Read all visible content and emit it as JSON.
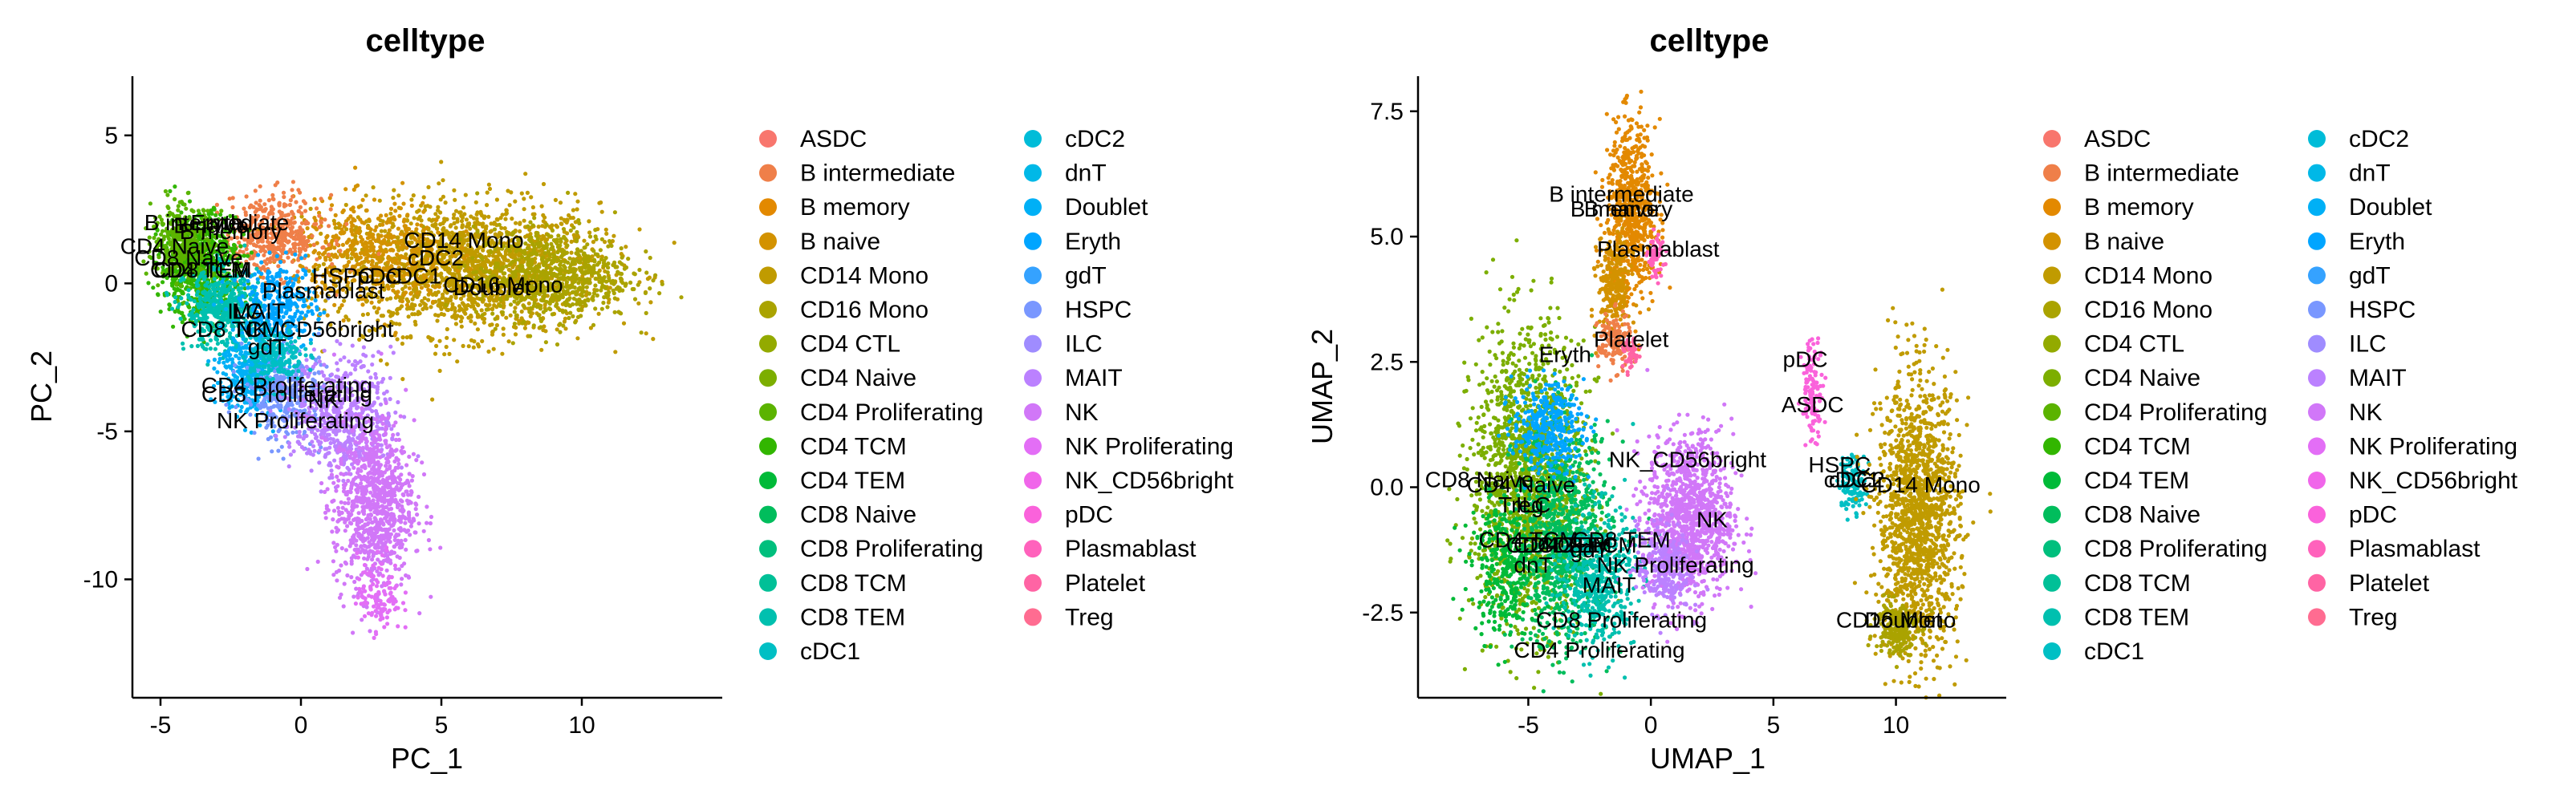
{
  "chart_data": [
    {
      "type": "scatter",
      "title": "celltype",
      "xlabel": "PC_1",
      "ylabel": "PC_2",
      "xlim": [
        -6,
        15
      ],
      "ylim": [
        -14,
        7
      ],
      "xticks": [
        -5,
        0,
        5,
        10
      ],
      "yticks": [
        5,
        0,
        -5,
        -10
      ],
      "grid": false,
      "legend_position": "right",
      "clusters": [
        {
          "name": "B intermediate",
          "x": -3.0,
          "y": 1.8,
          "label": "B intermediate"
        },
        {
          "name": "B memory",
          "x": -2.5,
          "y": 1.5,
          "label": "B memory"
        },
        {
          "name": "B naive",
          "x": -3.2,
          "y": 1.7,
          "label": "B naive"
        },
        {
          "name": "Eryth",
          "x": -3.0,
          "y": 1.8,
          "label": "Eryth"
        },
        {
          "name": "CD4 Naive",
          "x": -4.5,
          "y": 1.0,
          "label": "CD4 Naive"
        },
        {
          "name": "CD8 Naive",
          "x": -4.0,
          "y": 0.6,
          "label": "CD8 Naive"
        },
        {
          "name": "CD4 TCM",
          "x": -3.6,
          "y": 0.2,
          "label": "CD4 TCM"
        },
        {
          "name": "CD8 TEM",
          "x": -3.5,
          "y": 0.2,
          "label": "CD8 TEM"
        },
        {
          "name": "HSPC",
          "x": 1.5,
          "y": 0.0,
          "label": "HSPC"
        },
        {
          "name": "pDC",
          "x": 2.8,
          "y": 0.0,
          "label": "pDC"
        },
        {
          "name": "cDC1",
          "x": 4.0,
          "y": 0.0,
          "label": "cDC1"
        },
        {
          "name": "CD14 Mono",
          "x": 5.8,
          "y": 1.2,
          "label": "CD14 Mono"
        },
        {
          "name": "cDC2",
          "x": 4.8,
          "y": 0.6,
          "label": "cDC2"
        },
        {
          "name": "CD16 Mono",
          "x": 7.2,
          "y": -0.3,
          "label": "CD16 Mono"
        },
        {
          "name": "Doublet",
          "x": 6.8,
          "y": -0.4,
          "label": "Doublet"
        },
        {
          "name": "Plasmablast",
          "x": 0.8,
          "y": -0.5,
          "label": "Plasmablast"
        },
        {
          "name": "ILC",
          "x": -2.0,
          "y": -1.2,
          "label": "ILC"
        },
        {
          "name": "MAIT",
          "x": -1.5,
          "y": -1.2,
          "label": "MAIT"
        },
        {
          "name": "CD8 TCM",
          "x": -2.5,
          "y": -1.8,
          "label": "CD8 TCM"
        },
        {
          "name": "NK_CD56bright",
          "x": 0.5,
          "y": -1.8,
          "label": "NK_CD56bright"
        },
        {
          "name": "gdT",
          "x": -1.2,
          "y": -2.4,
          "label": "gdT"
        },
        {
          "name": "CD4 Proliferating",
          "x": -0.5,
          "y": -3.7,
          "label": "CD4 Proliferating"
        },
        {
          "name": "CD8 Proliferating",
          "x": -0.5,
          "y": -4.0,
          "label": "CD8 Proliferating"
        },
        {
          "name": "NK",
          "x": 0.8,
          "y": -4.2,
          "label": "NK"
        },
        {
          "name": "NK Proliferating",
          "x": -0.2,
          "y": -4.9,
          "label": "NK Proliferating"
        }
      ],
      "label_ids": [
        "B intermediate",
        "B memory",
        "B naive",
        "Eryth",
        "CD4 Naive",
        "CD8 Naive",
        "CD4 TCM",
        "CD8 TEM",
        "HSPC",
        "pDC",
        "cDC1",
        "CD14 Mono",
        "cDC2",
        "CD16 Mono",
        "Doublet",
        "Plasmablast",
        "ILC",
        "MAIT",
        "CD8 TCM",
        "NK_CD56bright",
        "gdT",
        "CD4 Proliferating",
        "CD8 Proliferating",
        "NK",
        "NK Proliferating"
      ]
    },
    {
      "type": "scatter",
      "title": "celltype",
      "xlabel": "UMAP_1",
      "ylabel": "UMAP_2",
      "xlim": [
        -9.5,
        14.5
      ],
      "ylim": [
        -4.2,
        8.2
      ],
      "xticks": [
        -5,
        0,
        5,
        10
      ],
      "yticks": [
        7.5,
        5.0,
        2.5,
        0.0,
        -2.5
      ],
      "grid": false,
      "legend_position": "right",
      "clusters": [
        {
          "name": "B intermediate",
          "x": -1.2,
          "y": 5.7,
          "label": "B intermediate"
        },
        {
          "name": "B memory",
          "x": -1.2,
          "y": 5.4,
          "label": "B memory"
        },
        {
          "name": "B naive",
          "x": -1.2,
          "y": 5.4,
          "label": "B naive"
        },
        {
          "name": "Plasmablast",
          "x": 0.3,
          "y": 4.6,
          "label": "Plasmablast"
        },
        {
          "name": "Platelet",
          "x": -0.8,
          "y": 2.8,
          "label": "Platelet"
        },
        {
          "name": "Eryth",
          "x": -3.5,
          "y": 2.5,
          "label": "Eryth"
        },
        {
          "name": "pDC",
          "x": 6.3,
          "y": 2.4,
          "label": "pDC"
        },
        {
          "name": "ASDC",
          "x": 6.6,
          "y": 1.5,
          "label": "ASDC"
        },
        {
          "name": "HSPC",
          "x": 7.7,
          "y": 0.3,
          "label": "HSPC"
        },
        {
          "name": "cDC1",
          "x": 8.2,
          "y": 0.0,
          "label": "cDC1"
        },
        {
          "name": "cDC2",
          "x": 8.4,
          "y": 0.0,
          "label": "cDC2"
        },
        {
          "name": "CD14 Mono",
          "x": 11.0,
          "y": -0.1,
          "label": "CD14 Mono"
        },
        {
          "name": "CD16 Mono",
          "x": 10.0,
          "y": -2.8,
          "label": "CD16 Mono"
        },
        {
          "name": "Doublet",
          "x": 10.3,
          "y": -2.8,
          "label": "Doublet"
        },
        {
          "name": "NK_CD56bright",
          "x": 1.5,
          "y": 0.4,
          "label": "NK_CD56bright"
        },
        {
          "name": "NK",
          "x": 2.5,
          "y": -0.8,
          "label": "NK"
        },
        {
          "name": "CD8 Naive",
          "x": -7.0,
          "y": 0.0,
          "label": "CD8 Naive"
        },
        {
          "name": "CD4 Naive",
          "x": -5.3,
          "y": -0.1,
          "label": "CD4 Naive"
        },
        {
          "name": "Treg",
          "x": -5.3,
          "y": -0.5,
          "label": "Treg"
        },
        {
          "name": "ILC",
          "x": -4.8,
          "y": -0.5,
          "label": "ILC"
        },
        {
          "name": "CD4 TCM",
          "x": -5.0,
          "y": -1.2,
          "label": "CD4 TCM"
        },
        {
          "name": "CD4 CTL",
          "x": -4.0,
          "y": -1.3,
          "label": "CD4 CTL"
        },
        {
          "name": "CD8 TEM",
          "x": -1.2,
          "y": -1.2,
          "label": "CD8 TEM"
        },
        {
          "name": "gdT",
          "x": -2.5,
          "y": -1.4,
          "label": "gdT"
        },
        {
          "name": "CD4 TEM",
          "x": -3.6,
          "y": -1.3,
          "label": "CD4 TEM"
        },
        {
          "name": "CD8 TCM",
          "x": -2.6,
          "y": -1.3,
          "label": "CD8 TCM"
        },
        {
          "name": "dnT",
          "x": -4.8,
          "y": -1.7,
          "label": "dnT"
        },
        {
          "name": "NK Proliferating",
          "x": 1.0,
          "y": -1.7,
          "label": "NK Proliferating"
        },
        {
          "name": "MAIT",
          "x": -1.7,
          "y": -2.1,
          "label": "MAIT"
        },
        {
          "name": "CD8 Proliferating",
          "x": -1.2,
          "y": -2.8,
          "label": "CD8 Proliferating"
        },
        {
          "name": "CD4 Proliferating",
          "x": -2.1,
          "y": -3.4,
          "label": "CD4 Proliferating"
        }
      ],
      "label_ids": [
        "B intermediate",
        "B memory",
        "B naive",
        "Plasmablast",
        "Platelet",
        "Eryth",
        "pDC",
        "ASDC",
        "HSPC",
        "cDC1",
        "cDC2",
        "CD14 Mono",
        "CD16 Mono",
        "Doublet",
        "NK_CD56bright",
        "NK",
        "CD8 Naive",
        "CD4 Naive",
        "Treg",
        "ILC",
        "CD4 TCM",
        "CD4 CTL",
        "CD8 TEM",
        "gdT",
        "CD4 TEM",
        "CD8 TCM",
        "dnT",
        "NK Proliferating",
        "MAIT",
        "CD8 Proliferating",
        "CD4 Proliferating"
      ]
    }
  ],
  "legend": {
    "col1": [
      "ASDC",
      "B intermediate",
      "B memory",
      "B naive",
      "CD14 Mono",
      "CD16 Mono",
      "CD4 CTL",
      "CD4 Naive",
      "CD4 Proliferating",
      "CD4 TCM",
      "CD4 TEM",
      "CD8 Naive",
      "CD8 Proliferating",
      "CD8 TCM",
      "CD8 TEM",
      "cDC1"
    ],
    "col2": [
      "cDC2",
      "dnT",
      "Doublet",
      "Eryth",
      "gdT",
      "HSPC",
      "ILC",
      "MAIT",
      "NK",
      "NK Proliferating",
      "NK_CD56bright",
      "pDC",
      "Plasmablast",
      "Platelet",
      "Treg"
    ]
  },
  "colors": {
    "ASDC": "#F8766D",
    "B intermediate": "#EF7F49",
    "B memory": "#E38900",
    "B naive": "#D39200",
    "CD14 Mono": "#C09B00",
    "CD16 Mono": "#AAA300",
    "CD4 CTL": "#93AA00",
    "CD4 Naive": "#7CAE00",
    "CD4 Proliferating": "#5BB300",
    "CD4 TCM": "#32B600",
    "CD4 TEM": "#00BA38",
    "CD8 Naive": "#00BD5C",
    "CD8 Proliferating": "#00BF7D",
    "CD8 TCM": "#00C097",
    "CD8 TEM": "#00C0AF",
    "cDC1": "#00BFC4",
    "cDC2": "#00BCD8",
    "dnT": "#00B8E7",
    "Doublet": "#00B0F6",
    "Eryth": "#00A5FF",
    "gdT": "#35A2FF",
    "HSPC": "#7997FF",
    "ILC": "#9F8CFF",
    "MAIT": "#BB81FF",
    "NK": "#D177F8",
    "NK Proliferating": "#E36EF6",
    "NK_CD56bright": "#F066EA",
    "pDC": "#FA62DB",
    "Plasmablast": "#FF62BC",
    "Platelet": "#FF64A4",
    "Treg": "#FF6C91"
  }
}
